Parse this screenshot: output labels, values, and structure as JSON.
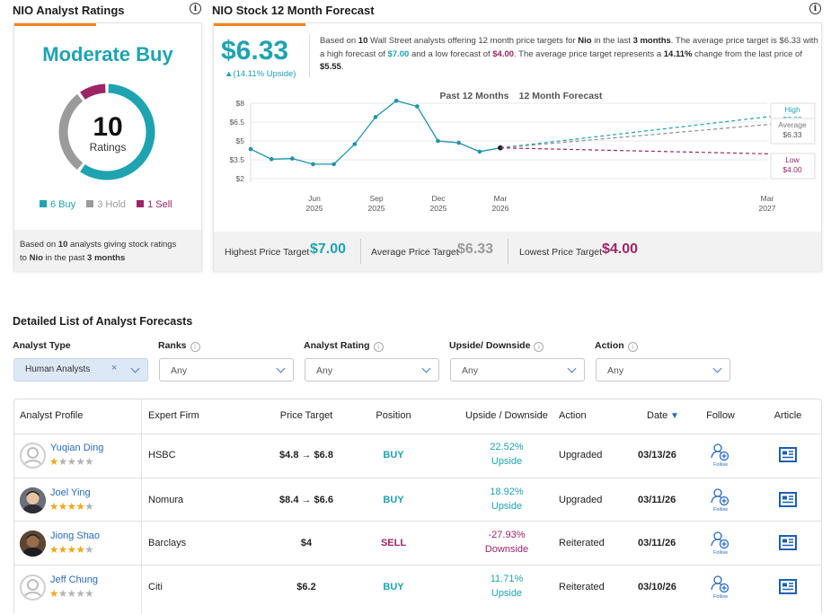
{
  "ratings": {
    "title": "NIO Analyst Ratings",
    "consensus": "Moderate Buy",
    "count": "10",
    "count_label": "Ratings",
    "buy": {
      "label": "6 Buy",
      "value": 6,
      "color": "#1fa3b0"
    },
    "hold": {
      "label": "3 Hold",
      "value": 3,
      "color": "#9b9b9b"
    },
    "sell": {
      "label": "1 Sell",
      "value": 1,
      "color": "#9c2566"
    },
    "footer_pre": "Based on",
    "footer_count": "10",
    "footer_mid": "analysts giving stock ratings",
    "footer_to": "to",
    "footer_ticker": "Nio",
    "footer_in": "in the past",
    "footer_period": "3 months"
  },
  "forecast": {
    "title": "NIO Stock 12 Month Forecast",
    "price": "$6.33",
    "upside": "▲(14.11% Upside)",
    "desc": [
      {
        "t": "Based on ",
        "b": false
      },
      {
        "t": "10",
        "b": true
      },
      {
        "t": " Wall Street analysts offering 12 month price targets for ",
        "b": false
      },
      {
        "t": "Nio",
        "b": true
      },
      {
        "t": " in the last ",
        "b": false
      },
      {
        "t": "3 months",
        "b": true
      },
      {
        "t": ". The average price target is $6.33 with a high forecast of ",
        "b": false
      },
      {
        "t": "$7.00",
        "b": true,
        "c": "#1fa3b0"
      },
      {
        "t": " and a low forecast of ",
        "b": false
      },
      {
        "t": "$4.00",
        "b": true,
        "c": "#9c2566"
      },
      {
        "t": ". The average price target represents a ",
        "b": false
      },
      {
        "t": "14.11%",
        "b": true
      },
      {
        "t": " change from the last price of ",
        "b": false
      },
      {
        "t": "$5.55",
        "b": true
      },
      {
        "t": ".",
        "b": false
      }
    ],
    "highest_label": "Highest Price Target",
    "highest_value": "$7.00",
    "average_label": "Average Price Target",
    "average_value": "$6.33",
    "lowest_label": "Lowest Price Target",
    "lowest_value": "$4.00"
  },
  "chart_data": {
    "type": "line",
    "past_label": "Past 12 Months",
    "forecast_label": "12 Month Forecast",
    "y_ticks": [
      "$8",
      "$6.5",
      "$5",
      "$3.5",
      "$2"
    ],
    "ylim": [
      2,
      8
    ],
    "x_ticks": [
      {
        "m": "Jun",
        "y": "2025"
      },
      {
        "m": "Sep",
        "y": "2025"
      },
      {
        "m": "Dec",
        "y": "2025"
      },
      {
        "m": "Mar",
        "y": "2026"
      },
      {
        "m": "Mar",
        "y": "2027"
      }
    ],
    "series": [
      {
        "name": "Price",
        "x": [
          0,
          1,
          2,
          3,
          4,
          5,
          6,
          7,
          8,
          9,
          10,
          11,
          12
        ],
        "values": [
          4.35,
          3.55,
          3.6,
          3.15,
          3.15,
          4.75,
          6.9,
          8.2,
          7.75,
          5.0,
          4.85,
          4.15,
          4.45
        ]
      },
      {
        "name": "High",
        "values": [
          4.45,
          6.95
        ],
        "label": "High",
        "value_label": "$7.00"
      },
      {
        "name": "Average",
        "values": [
          4.45,
          6.33
        ],
        "label": "Average",
        "value_label": "$6.33"
      },
      {
        "name": "Low",
        "values": [
          4.45,
          3.97
        ],
        "label": "Low",
        "value_label": "$4.00"
      }
    ]
  },
  "detailed": {
    "title": "Detailed List of Analyst Forecasts",
    "filters": [
      {
        "label": "Analyst Type",
        "value": "Human Analysts",
        "info": false,
        "tag": true
      },
      {
        "label": "Ranks",
        "value": "Any",
        "info": true
      },
      {
        "label": "Analyst Rating",
        "value": "Any",
        "info": true
      },
      {
        "label": "Upside/ Downside",
        "value": "Any",
        "info": true
      },
      {
        "label": "Action",
        "value": "Any",
        "info": true
      }
    ],
    "columns": [
      "Analyst Profile",
      "Expert Firm",
      "Price Target",
      "Position",
      "Upside / Downside",
      "Action",
      "Date",
      "Follow",
      "Article"
    ],
    "follow_text": "Follow",
    "rows": [
      {
        "name": "Yuqian Ding",
        "stars": 1,
        "firm": "HSBC",
        "target": "$4.8 → $6.8",
        "position": "BUY",
        "pos_color": "#1fa3b0",
        "pct": "22.52%",
        "dir": "Upside",
        "dir_color": "#1fa3b0",
        "action": "Upgraded",
        "date": "03/13/26",
        "avatar": "placeholder"
      },
      {
        "name": "Joel Ying",
        "stars": 4,
        "firm": "Nomura",
        "target": "$8.4 → $6.6",
        "position": "BUY",
        "pos_color": "#1fa3b0",
        "pct": "18.92%",
        "dir": "Upside",
        "dir_color": "#1fa3b0",
        "action": "Upgraded",
        "date": "03/11/26",
        "avatar": "photo"
      },
      {
        "name": "Jiong Shao",
        "stars": 4,
        "firm": "Barclays",
        "target": "$4",
        "position": "SELL",
        "pos_color": "#9c2566",
        "pct": "-27.93%",
        "dir": "Downside",
        "dir_color": "#9c2566",
        "action": "Reiterated",
        "date": "03/11/26",
        "avatar": "photo"
      },
      {
        "name": "Jeff Chung",
        "stars": 1,
        "firm": "Citi",
        "target": "$6.2",
        "position": "BUY",
        "pos_color": "#1fa3b0",
        "pct": "11.71%",
        "dir": "Upside",
        "dir_color": "#1fa3b0",
        "action": "Reiterated",
        "date": "03/10/26",
        "avatar": "placeholder"
      }
    ]
  }
}
